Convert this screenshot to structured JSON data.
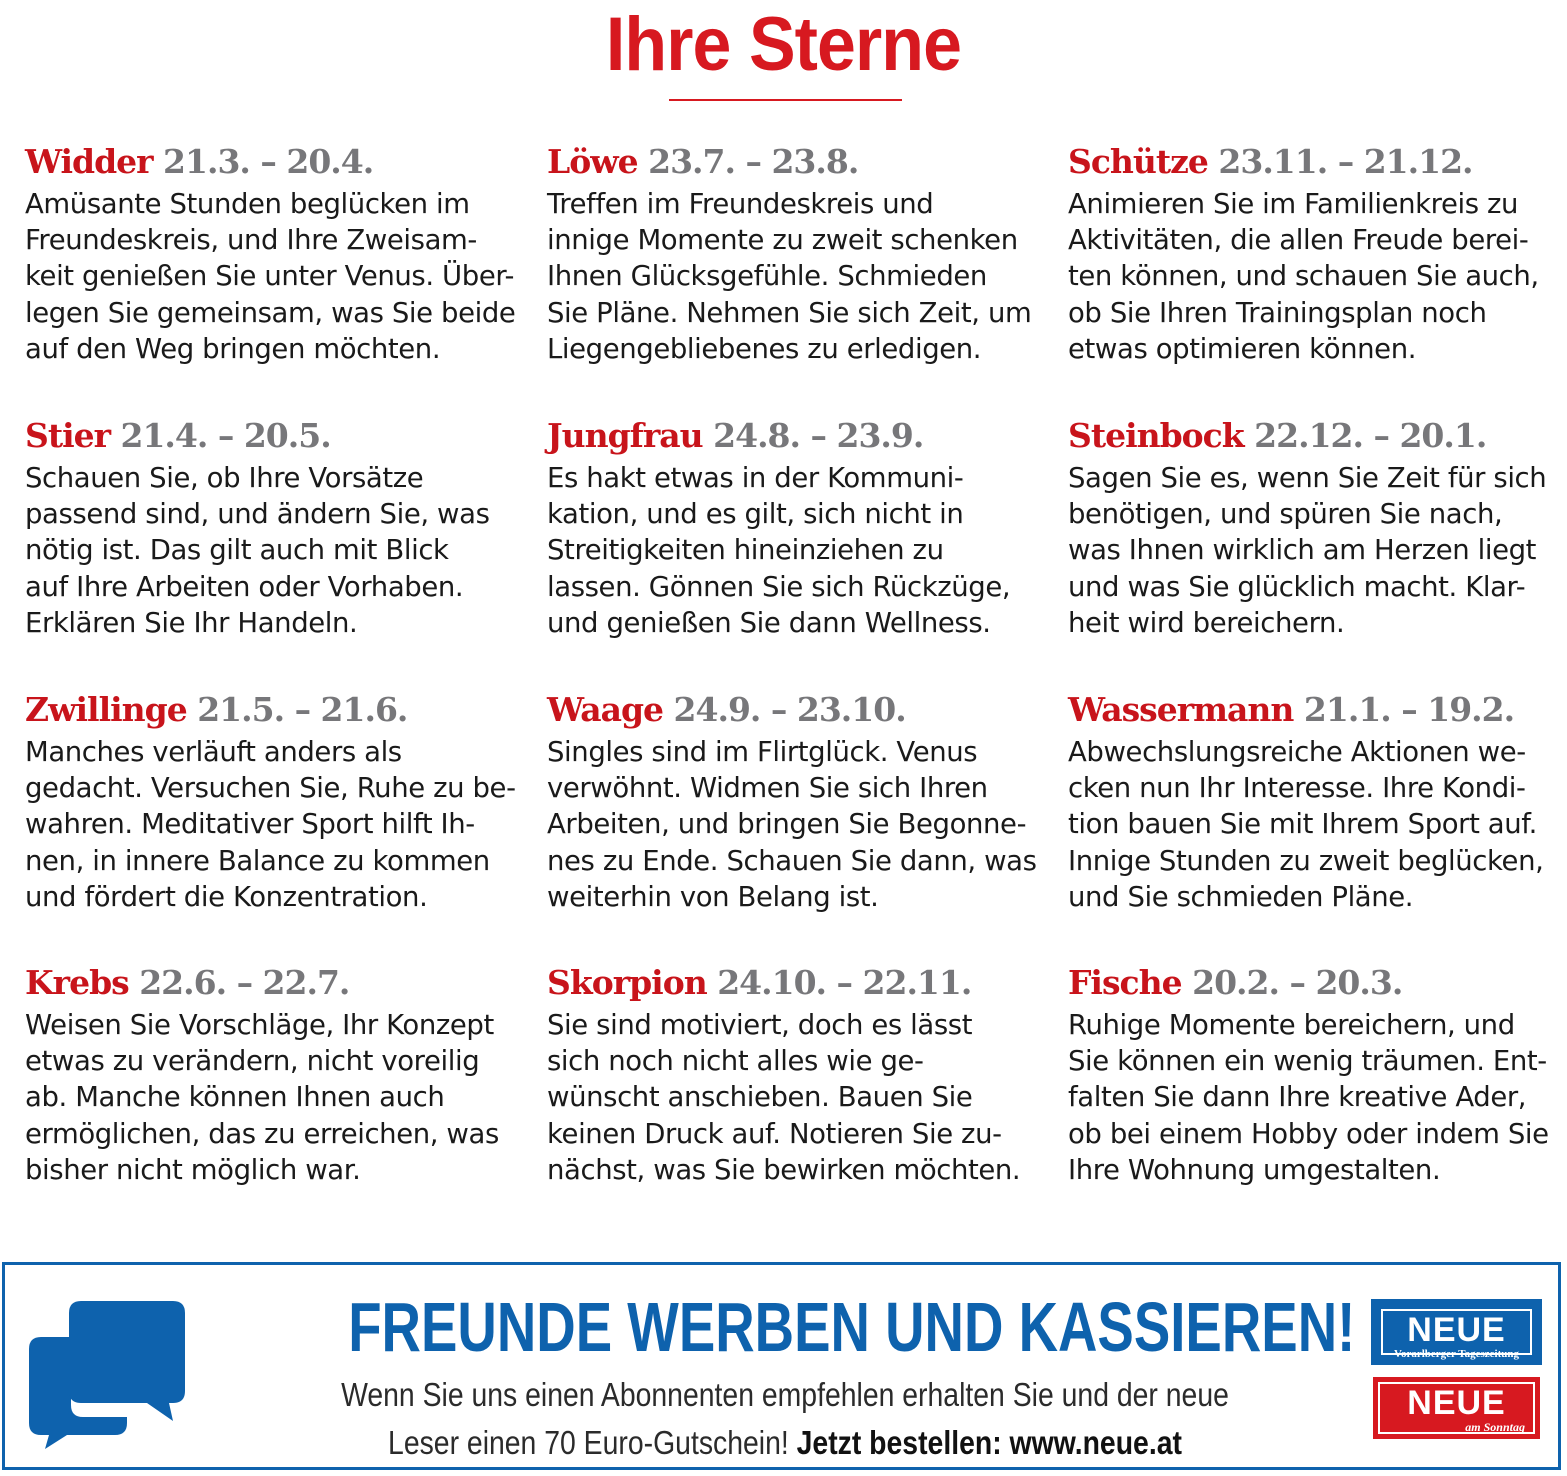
{
  "page": {
    "title": "Ihre Sterne"
  },
  "signs": [
    {
      "name": "Widder",
      "date": "21.3. – 20.4.",
      "text": "Amüsante Stunden beglücken im\nFreundeskreis, und Ihre Zweisam-\nkeit genießen Sie unter Venus. Über-\nlegen Sie gemeinsam, was Sie beide\nauf den Weg bringen möchten."
    },
    {
      "name": "Stier",
      "date": "21.4. – 20.5.",
      "text": "Schauen Sie, ob Ihre Vorsätze\npassend sind, und ändern Sie, was\nnötig ist. Das gilt auch mit Blick\nauf Ihre Arbeiten oder Vorhaben.\nErklären Sie Ihr Handeln."
    },
    {
      "name": "Zwillinge",
      "date": "21.5. – 21.6.",
      "text": "Manches verläuft anders als\ngedacht. Versuchen Sie, Ruhe zu be-\nwahren. Meditativer Sport hilft Ih-\nnen, in innere Balance zu kommen\nund fördert die Konzentration."
    },
    {
      "name": "Krebs",
      "date": "22.6. – 22.7.",
      "text": "Weisen Sie Vorschläge, Ihr Konzept\netwas zu verändern, nicht voreilig\nab. Manche können Ihnen auch\nermöglichen, das zu erreichen, was\nbisher nicht möglich war."
    },
    {
      "name": "Löwe",
      "date": "23.7. – 23.8.",
      "text": "Treffen im Freundeskreis und\ninnige Momente zu zweit schenken\nIhnen Glücksgefühle. Schmieden\nSie Pläne. Nehmen Sie sich Zeit, um\nLiegengebliebenes zu erledigen."
    },
    {
      "name": "Jungfrau",
      "date": "24.8. – 23.9.",
      "text": "Es hakt etwas in der Kommuni-\nkation, und es gilt, sich nicht in\nStreitigkeiten hineinziehen zu\nlassen. Gönnen Sie sich Rückzüge,\nund genießen Sie dann Wellness."
    },
    {
      "name": "Waage",
      "date": "24.9. – 23.10.",
      "text": "Singles sind im Flirtglück. Venus\nverwöhnt. Widmen Sie sich Ihren\nArbeiten, und bringen Sie Begonne-\nnes zu Ende. Schauen Sie dann, was\nweiterhin von Belang ist."
    },
    {
      "name": "Skorpion",
      "date": "24.10. – 22.11.",
      "text": "Sie sind motiviert, doch es lässt\nsich noch nicht alles wie ge-\nwünscht anschieben. Bauen Sie\nkeinen Druck auf. Notieren Sie zu-\nnächst, was Sie bewirken möchten."
    },
    {
      "name": "Schütze",
      "date": "23.11. – 21.12.",
      "text": "Animieren Sie im Familienkreis zu\nAktivitäten, die allen Freude berei-\nten können, und schauen Sie auch,\nob Sie Ihren Trainingsplan noch\netwas optimieren können."
    },
    {
      "name": "Steinbock",
      "date": "22.12. – 20.1.",
      "text": "Sagen Sie es, wenn Sie Zeit für sich\nbenötigen, und spüren Sie nach,\nwas Ihnen wirklich am Herzen liegt\nund was Sie glücklich macht. Klar-\nheit wird bereichern."
    },
    {
      "name": "Wassermann",
      "date": "21.1. – 19.2.",
      "text": "Abwechslungsreiche Aktionen we-\ncken nun Ihr Interesse. Ihre Kondi-\ntion bauen Sie mit Ihrem Sport auf.\nInnige Stunden zu zweit beglücken,\nund Sie schmieden Pläne."
    },
    {
      "name": "Fische",
      "date": "20.2. – 20.3.",
      "text": "Ruhige Momente bereichern, und\nSie können ein wenig träumen. Ent-\nfalten Sie dann Ihre kreative Ader,\nob bei einem Hobby oder indem Sie\nIhre Wohnung umgestalten."
    }
  ],
  "promo": {
    "icon": "chat-bubble-icon",
    "headline": "FREUNDE WERBEN UND KASSIEREN!",
    "line1": "Wenn Sie uns einen Abonnenten empfehlen erhalten Sie und der neue",
    "line2_text": "Leser einen 70 Euro-Gutschein!",
    "line2_cta": "Jetzt bestellen: www.neue.at",
    "logo1": {
      "word": "NEUE",
      "sub": "Vorarlberger Tageszeitung"
    },
    "logo2": {
      "word": "NEUE",
      "sub": "am Sonntag"
    },
    "colors": {
      "accent_red": "#d71920",
      "accent_blue": "#0e62ad"
    }
  }
}
